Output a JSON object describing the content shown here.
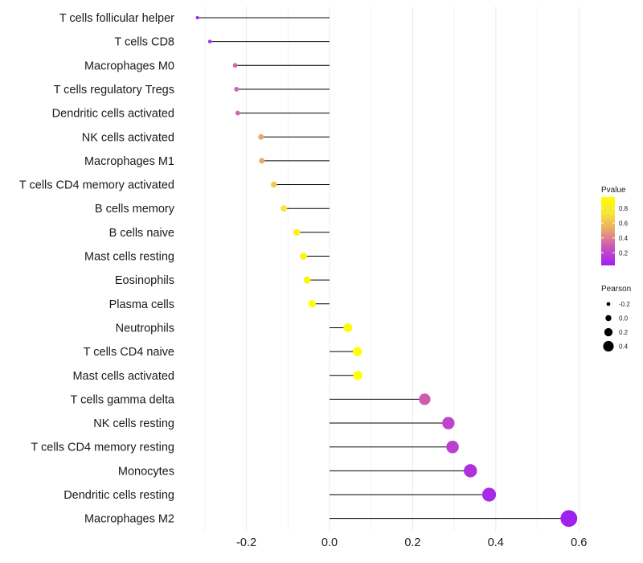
{
  "chart_data": {
    "type": "lollipop",
    "categories": [
      "T cells follicular helper",
      "T cells CD8",
      "Macrophages M0",
      "T cells regulatory  Tregs",
      "Dendritic cells activated",
      "NK cells activated",
      "Macrophages M1",
      "T cells CD4 memory activated",
      "B cells memory",
      "B cells naive",
      "Mast cells resting",
      "Eosinophils",
      "Plasma cells",
      "Neutrophils",
      "T cells CD4 naive",
      "Mast cells activated",
      "T cells gamma delta",
      "NK cells resting",
      "T cells CD4 memory resting",
      "Monocytes",
      "Dendritic cells resting",
      "Macrophages M2"
    ],
    "pearson": [
      -0.318,
      -0.288,
      -0.227,
      -0.224,
      -0.221,
      -0.165,
      -0.163,
      -0.134,
      -0.11,
      -0.079,
      -0.063,
      -0.054,
      -0.042,
      0.044,
      0.067,
      0.068,
      0.229,
      0.286,
      0.296,
      0.339,
      0.384,
      0.576
    ],
    "pvalue": [
      0.05,
      0.1,
      0.32,
      0.32,
      0.33,
      0.52,
      0.52,
      0.63,
      0.72,
      0.83,
      0.87,
      0.87,
      0.92,
      0.92,
      0.95,
      0.95,
      0.3,
      0.2,
      0.18,
      0.11,
      0.08,
      0.03
    ],
    "xlim": [
      -0.34,
      0.62
    ],
    "xticks": [
      -0.2,
      0.0,
      0.2,
      0.4,
      0.6
    ],
    "xtick_labels": [
      "-0.2",
      "0.0",
      "0.2",
      "0.4",
      "0.6"
    ],
    "title": "",
    "xlabel": "",
    "ylabel": "",
    "grid": true,
    "legends": {
      "color": {
        "title": "Pvalue",
        "ticks": [
          0.2,
          0.4,
          0.6,
          0.8
        ],
        "tick_labels": [
          "0.2",
          "0.4",
          "0.6",
          "0.8"
        ],
        "range": [
          0.03,
          0.95
        ],
        "colors": [
          "#a020f0",
          "#c94fc0",
          "#e8a070",
          "#f7e33a",
          "#ffff00"
        ]
      },
      "size": {
        "title": "Pearson",
        "values": [
          -0.2,
          0.0,
          0.2,
          0.4
        ],
        "labels": [
          "-0.2",
          "0.0",
          "0.2",
          "0.4"
        ]
      }
    },
    "legend_position": "right",
    "stem_color": "#000000"
  }
}
